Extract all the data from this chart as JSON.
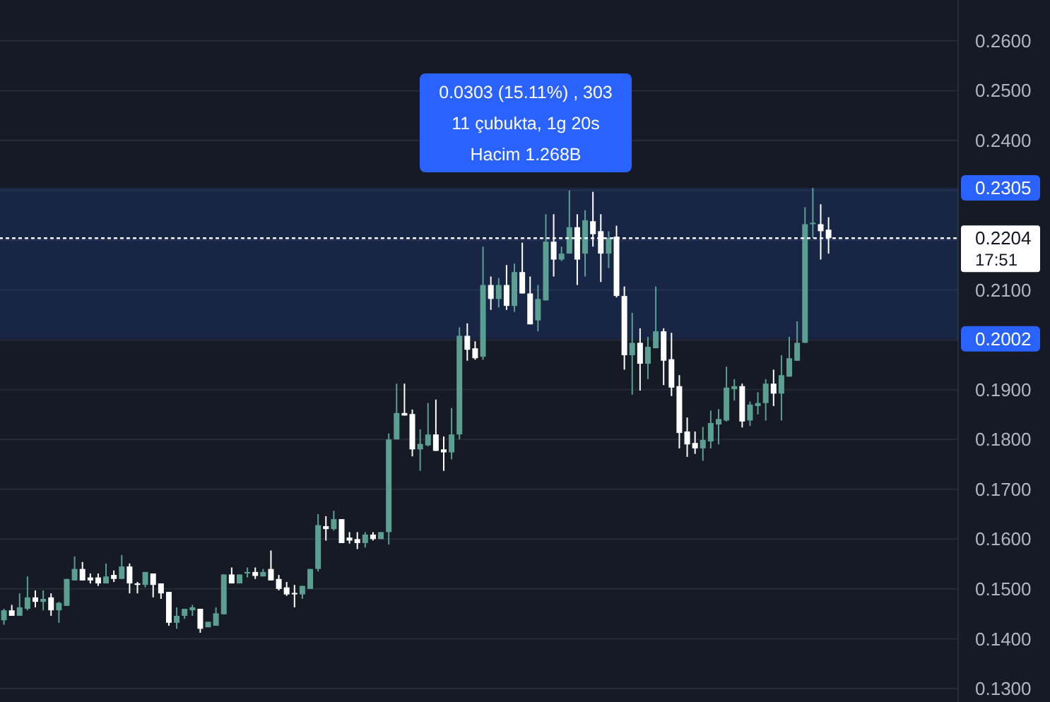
{
  "chart_data": {
    "type": "candlestick",
    "colors": [
      "#5b9e92",
      "#ffffff",
      "#5b9e92",
      "#5b9e92",
      "#ffffff",
      "#5b9e92",
      "#ffffff",
      "#5b9e92",
      "#5b9e92",
      "#5b9e92",
      "#ffffff",
      "#ffffff",
      "#ffffff",
      "#5b9e92",
      "#ffffff",
      "#5b9e92",
      "#ffffff",
      "#ffffff",
      "#5b9e92",
      "#ffffff",
      "#ffffff",
      "#ffffff",
      "#5b9e92",
      "#5b9e92",
      "#5b9e92",
      "#ffffff",
      "#5b9e92",
      "#5b9e92",
      "#5b9e92",
      "#ffffff",
      "#5b9e92",
      "#5b9e92",
      "#ffffff",
      "#5b9e92",
      "#ffffff",
      "#ffffff",
      "#ffffff",
      "#ffffff",
      "#5b9e92",
      "#5b9e92",
      "#5b9e92",
      "#ffffff",
      "#5b9e92",
      "#ffffff",
      "#ffffff",
      "#ffffff",
      "#5b9e92",
      "#ffffff",
      "#5b9e92",
      "#5b9e92",
      "#5b9e92",
      "#ffffff",
      "#ffffff",
      "#5b9e92",
      "#5b9e92",
      "#ffffff",
      "#ffffff",
      "#5b9e92",
      "#5b9e92",
      "#ffffff",
      "#ffffff",
      "#5b9e92",
      "#ffffff",
      "#5b9e92",
      "#ffffff",
      "#5b9e92",
      "#ffffff",
      "#ffffff",
      "#5b9e92",
      "#5b9e92",
      "#ffffff",
      "#5b9e92",
      "#5b9e92",
      "#ffffff",
      "#5b9e92",
      "#ffffff",
      "#ffffff",
      "#5b9e92",
      "#ffffff",
      "#ffffff",
      "#5b9e92",
      "#ffffff",
      "#5b9e92",
      "#5b9e92",
      "#ffffff",
      "#ffffff",
      "#ffffff",
      "#ffffff",
      "#ffffff",
      "#5b9e92",
      "#5b9e92",
      "#5b9e92",
      "#5b9e92",
      "#5b9e92",
      "#ffffff",
      "#5b9e92",
      "#5b9e92",
      "#5b9e92",
      "#ffffff",
      "#5b9e92",
      "#5b9e92",
      "#5b9e92",
      "#5b9e92",
      "#5b9e92",
      "#ffffff",
      "#ffffff",
      null,
      null,
      null,
      null,
      null,
      null,
      null,
      null,
      null,
      null,
      null,
      null,
      null,
      null,
      null,
      null
    ],
    "categories": [
      null,
      null,
      null,
      null,
      null,
      null,
      null,
      null,
      null,
      null,
      null,
      null,
      null,
      null,
      null,
      null,
      null,
      null,
      null,
      null,
      null,
      null,
      null,
      null,
      null,
      null,
      null,
      null,
      null,
      null,
      null,
      null,
      null,
      null,
      null,
      null,
      null,
      null,
      null,
      null,
      null,
      null,
      null,
      null,
      null,
      null,
      null,
      null,
      null,
      null,
      null,
      null,
      null,
      null,
      null,
      null,
      null,
      null,
      null,
      null,
      null,
      null,
      null,
      null,
      null,
      null,
      null,
      null,
      null,
      null,
      null,
      null,
      null,
      null,
      null,
      null,
      null,
      null,
      null,
      null,
      null,
      null,
      null,
      null,
      null,
      null,
      null,
      null,
      null,
      null,
      null,
      null,
      null,
      null,
      null,
      null,
      null,
      null,
      null,
      null,
      null,
      null,
      null,
      null,
      null,
      null,
      null,
      null,
      null,
      null,
      null,
      null,
      null,
      null,
      null,
      null,
      null,
      null,
      null,
      null,
      null,
      null
    ],
    "ohlc": [
      [
        0.1437,
        0.146,
        0.1428,
        0.1457
      ],
      [
        0.1457,
        0.1468,
        0.1446,
        0.1446
      ],
      [
        0.1446,
        0.1491,
        0.1446,
        0.1463
      ],
      [
        0.146,
        0.1525,
        0.1457,
        0.1483
      ],
      [
        0.1483,
        0.1497,
        0.1463,
        0.1474
      ],
      [
        0.1474,
        0.1497,
        0.1457,
        0.148
      ],
      [
        0.1483,
        0.1491,
        0.1446,
        0.1457
      ],
      [
        0.1457,
        0.1474,
        0.1432,
        0.1472
      ],
      [
        0.1466,
        0.152,
        0.1466,
        0.152
      ],
      [
        0.1517,
        0.1565,
        0.1517,
        0.154
      ],
      [
        0.154,
        0.1554,
        0.1517,
        0.1517
      ],
      [
        0.1523,
        0.1531,
        0.1511,
        0.1517
      ],
      [
        0.1523,
        0.1531,
        0.1506,
        0.1511
      ],
      [
        0.1511,
        0.1551,
        0.1511,
        0.1525
      ],
      [
        0.1528,
        0.1537,
        0.1514,
        0.152
      ],
      [
        0.152,
        0.1568,
        0.152,
        0.1545
      ],
      [
        0.1545,
        0.1551,
        0.1491,
        0.1511
      ],
      [
        0.1511,
        0.1514,
        0.1491,
        0.1508
      ],
      [
        0.1508,
        0.1534,
        0.1503,
        0.1534
      ],
      [
        0.1531,
        0.1531,
        0.1483,
        0.1508
      ],
      [
        0.1511,
        0.1511,
        0.148,
        0.1491
      ],
      [
        0.1494,
        0.1494,
        0.1426,
        0.1432
      ],
      [
        0.1432,
        0.1463,
        0.142,
        0.1446
      ],
      [
        0.1446,
        0.146,
        0.144,
        0.146
      ],
      [
        0.1457,
        0.1468,
        0.1446,
        0.1463
      ],
      [
        0.146,
        0.146,
        0.1412,
        0.142
      ],
      [
        0.1423,
        0.1434,
        0.1423,
        0.1434
      ],
      [
        0.1426,
        0.1463,
        0.1426,
        0.1451
      ],
      [
        0.1449,
        0.1529,
        0.1449,
        0.1529
      ],
      [
        0.1529,
        0.1543,
        0.1511,
        0.1511
      ],
      [
        0.1511,
        0.1529,
        0.1511,
        0.1529
      ],
      [
        0.1531,
        0.1543,
        0.1523,
        0.1534
      ],
      [
        0.1534,
        0.1543,
        0.152,
        0.1526
      ],
      [
        0.1525,
        0.154,
        0.1525,
        0.1534
      ],
      [
        0.154,
        0.1577,
        0.1517,
        0.1517
      ],
      [
        0.152,
        0.1528,
        0.1497,
        0.15
      ],
      [
        0.1503,
        0.1514,
        0.1486,
        0.1489
      ],
      [
        0.1492,
        0.1508,
        0.1463,
        0.1489
      ],
      [
        0.1489,
        0.1506,
        0.148,
        0.1506
      ],
      [
        0.15,
        0.154,
        0.15,
        0.154
      ],
      [
        0.154,
        0.165,
        0.1535,
        0.1628
      ],
      [
        0.1626,
        0.1646,
        0.1597,
        0.162
      ],
      [
        0.162,
        0.1657,
        0.1617,
        0.164
      ],
      [
        0.164,
        0.164,
        0.1592,
        0.1592
      ],
      [
        0.1603,
        0.1614,
        0.1591,
        0.1597
      ],
      [
        0.16,
        0.1614,
        0.158,
        0.1592
      ],
      [
        0.1592,
        0.1614,
        0.1583,
        0.1609
      ],
      [
        0.1609,
        0.1614,
        0.1597,
        0.16
      ],
      [
        0.16,
        0.1614,
        0.16,
        0.1614
      ],
      [
        0.1614,
        0.1812,
        0.1589,
        0.18
      ],
      [
        0.18,
        0.1912,
        0.18,
        0.1853
      ],
      [
        0.1853,
        0.1912,
        0.1848,
        0.1848
      ],
      [
        0.1851,
        0.186,
        0.1766,
        0.178
      ],
      [
        0.178,
        0.182,
        0.1737,
        0.1791
      ],
      [
        0.1788,
        0.1873,
        0.1786,
        0.181
      ],
      [
        0.181,
        0.188,
        0.1777,
        0.1777
      ],
      [
        0.178,
        0.1806,
        0.1737,
        0.1774
      ],
      [
        0.1774,
        0.1863,
        0.176,
        0.181
      ],
      [
        0.181,
        0.2025,
        0.18,
        0.2008
      ],
      [
        0.2008,
        0.2033,
        0.1958,
        0.198
      ],
      [
        0.1983,
        0.1997,
        0.196,
        0.1963
      ],
      [
        0.1966,
        0.2187,
        0.196,
        0.211
      ],
      [
        0.211,
        0.2127,
        0.206,
        0.2082
      ],
      [
        0.2082,
        0.2124,
        0.2065,
        0.211
      ],
      [
        0.211,
        0.215,
        0.206,
        0.2068
      ],
      [
        0.2068,
        0.2153,
        0.2056,
        0.2136
      ],
      [
        0.2136,
        0.2195,
        0.2093,
        0.2093
      ],
      [
        0.2093,
        0.2127,
        0.2031,
        0.2031
      ],
      [
        0.2039,
        0.211,
        0.2017,
        0.2082
      ],
      [
        0.2079,
        0.2252,
        0.2079,
        0.2197
      ],
      [
        0.2197,
        0.2252,
        0.2127,
        0.2161
      ],
      [
        0.2161,
        0.2187,
        0.2158,
        0.2173
      ],
      [
        0.2173,
        0.23,
        0.2173,
        0.2226
      ],
      [
        0.2226,
        0.2252,
        0.211,
        0.2161
      ],
      [
        0.2173,
        0.226,
        0.2127,
        0.224
      ],
      [
        0.2238,
        0.2297,
        0.2187,
        0.2212
      ],
      [
        0.2218,
        0.2252,
        0.2116,
        0.2173
      ],
      [
        0.2173,
        0.2218,
        0.2144,
        0.2204
      ],
      [
        0.2207,
        0.2229,
        0.2085,
        0.2088
      ],
      [
        0.2088,
        0.2107,
        0.194,
        0.1969
      ],
      [
        0.1969,
        0.2054,
        0.189,
        0.1994
      ],
      [
        0.1994,
        0.2023,
        0.1898,
        0.1952
      ],
      [
        0.1952,
        0.2006,
        0.1921,
        0.1986
      ],
      [
        0.1983,
        0.2107,
        0.1983,
        0.2017
      ],
      [
        0.2017,
        0.2023,
        0.1909,
        0.1958
      ],
      [
        0.1961,
        0.2014,
        0.1887,
        0.1904
      ],
      [
        0.1907,
        0.1929,
        0.1782,
        0.1813
      ],
      [
        0.1816,
        0.1844,
        0.1765,
        0.179
      ],
      [
        0.1793,
        0.1816,
        0.1771,
        0.1782
      ],
      [
        0.1782,
        0.1825,
        0.1757,
        0.1799
      ],
      [
        0.1796,
        0.1858,
        0.1782,
        0.1833
      ],
      [
        0.183,
        0.1861,
        0.179,
        0.1841
      ],
      [
        0.1838,
        0.1946,
        0.1836,
        0.1904
      ],
      [
        0.1901,
        0.1921,
        0.1878,
        0.1907
      ],
      [
        0.1907,
        0.1912,
        0.1824,
        0.1836
      ],
      [
        0.1838,
        0.1876,
        0.1827,
        0.187
      ],
      [
        0.1867,
        0.1895,
        0.185,
        0.1873
      ],
      [
        0.1873,
        0.1921,
        0.1838,
        0.1912
      ],
      [
        0.1912,
        0.194,
        0.1867,
        0.1892
      ],
      [
        0.1892,
        0.1969,
        0.1838,
        0.1929
      ],
      [
        0.1926,
        0.2006,
        0.1926,
        0.1963
      ],
      [
        0.1958,
        0.2037,
        0.1958,
        0.1994
      ],
      [
        0.1994,
        0.2266,
        0.1994,
        0.2232
      ],
      [
        0.2232,
        0.2305,
        0.2204,
        0.2235
      ],
      [
        0.2232,
        0.2272,
        0.2161,
        0.2218
      ],
      [
        0.2221,
        0.2246,
        0.2173,
        0.2204
      ],
      null,
      null,
      null,
      null,
      null,
      null,
      null,
      null,
      null,
      null,
      null,
      null,
      null,
      null,
      null,
      null
    ],
    "ylim": [
      0.1273,
      0.2682
    ],
    "yticks": [
      {
        "value": 0.13,
        "label": "0.1300"
      },
      {
        "value": 0.14,
        "label": "0.1400"
      },
      {
        "value": 0.15,
        "label": "0.1500"
      },
      {
        "value": 0.16,
        "label": "0.1600"
      },
      {
        "value": 0.17,
        "label": "0.1700"
      },
      {
        "value": 0.18,
        "label": "0.1800"
      },
      {
        "value": 0.19,
        "label": "0.1900"
      },
      {
        "value": 0.2,
        "label": null
      },
      {
        "value": 0.21,
        "label": "0.2100"
      },
      {
        "value": 0.22,
        "label": null
      },
      {
        "value": 0.23,
        "label": null
      },
      {
        "value": 0.24,
        "label": "0.2400"
      },
      {
        "value": 0.25,
        "label": "0.2500"
      },
      {
        "value": 0.26,
        "label": "0.2600"
      }
    ],
    "grid": "y",
    "tick_labels": "y",
    "ref_lines": [
      {
        "axis": "y",
        "value": 0.2204,
        "label": "0.2204",
        "color": "#ffffff",
        "line_style": "dotted"
      }
    ],
    "bands": [
      {
        "axis": "y",
        "from": 0.2002,
        "to": 0.2305,
        "color": "#2962ff"
      }
    ],
    "annotations": [
      "0.0303 (15.11%) , 303",
      "11 çubukta, 1g 20s",
      "Hacim 1.268B",
      "17:51",
      "0.2305",
      "0.2002"
    ]
  }
}
